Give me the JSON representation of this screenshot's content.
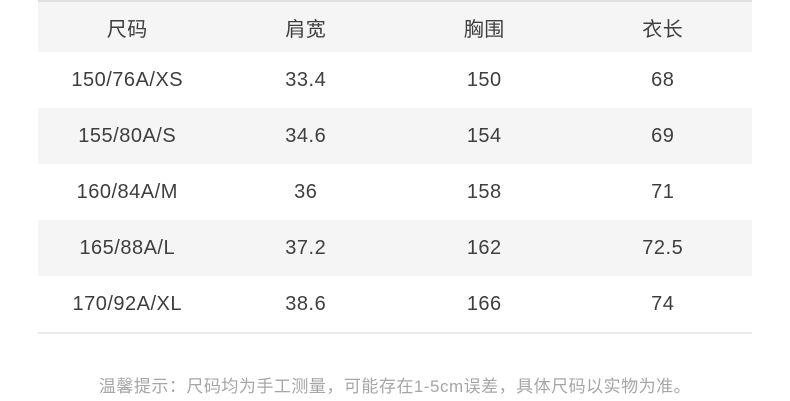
{
  "table": {
    "headers": [
      "尺码",
      "肩宽",
      "胸围",
      "衣长"
    ],
    "rows": [
      [
        "150/76A/XS",
        "33.4",
        "150",
        "68"
      ],
      [
        "155/80A/S",
        "34.6",
        "154",
        "69"
      ],
      [
        "160/84A/M",
        "36",
        "158",
        "71"
      ],
      [
        "165/88A/L",
        "37.2",
        "162",
        "72.5"
      ],
      [
        "170/92A/XL",
        "38.6",
        "166",
        "74"
      ]
    ]
  },
  "note": "温馨提示：尺码均为手工测量，可能存在1-5cm误差，具体尺码以实物为准。",
  "colors": {
    "header_bg": "#f5f5f5",
    "stripe_bg": "#f5f5f5",
    "row_bg": "#ffffff",
    "table_text": "#3e3e3e",
    "note_text": "#a6a6a6",
    "border_top": "#e0e0e0",
    "border_bottom": "#ededed"
  }
}
